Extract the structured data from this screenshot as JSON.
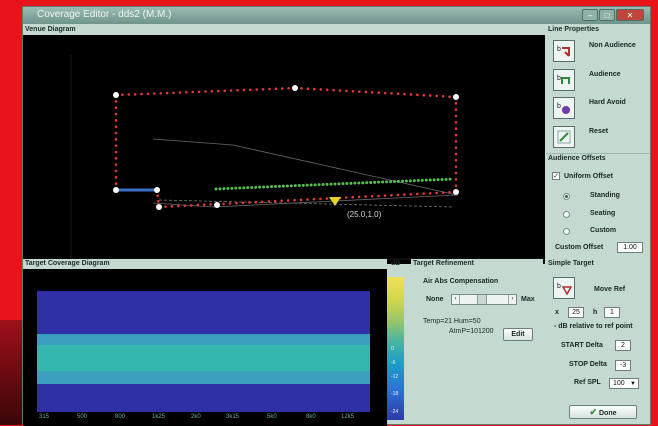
{
  "window": {
    "title": "Coverage Editor - dds2 (M.M.)",
    "buttons": [
      "–",
      "□",
      "✕"
    ]
  },
  "venue": {
    "title": "Venue Diagram",
    "coordinate_label": "(25.0,1.0)",
    "colors": {
      "boundary": "#e03a3a",
      "audience": "#52c24a",
      "hard_avoid": "#3f6fc2",
      "marker": "#e6d02a"
    }
  },
  "line_properties": {
    "title": "Line Properties",
    "items": [
      {
        "label": "Non Audience",
        "icon": "non-audience-icon"
      },
      {
        "label": "Audience",
        "icon": "audience-icon"
      },
      {
        "label": "Hard Avoid",
        "icon": "hard-avoid-icon"
      },
      {
        "label": "Reset",
        "icon": "reset-icon"
      }
    ]
  },
  "audience_offsets": {
    "title": "Audience Offsets",
    "uniform_label": "Uniform Offset",
    "uniform_checked": true,
    "options": [
      "Standing",
      "Seating",
      "Custom"
    ],
    "selected": "Standing",
    "custom_offset_label": "Custom Offset",
    "custom_offset_value": "1.00"
  },
  "target_coverage": {
    "title": "Target Coverage Diagram",
    "x_ticks": [
      "315",
      "500",
      "800",
      "1k25",
      "2k0",
      "3k15",
      "5k0",
      "8k0",
      "12k5"
    ],
    "colors": {
      "outer": "#3030a6",
      "inner": "#3a9fbc",
      "center": "#35b6ae"
    }
  },
  "colorbar": {
    "unit": "dB",
    "labels": [
      "0",
      "-6",
      "-12",
      "-18",
      "-24"
    ]
  },
  "target_refinement": {
    "title": "Target Refinement",
    "air_abs_label": "Air Abs Compensation",
    "min_label": "None",
    "max_label": "Max",
    "slider_level": 0.45,
    "temp_line": "Temp=21   Hum=50",
    "atm_line": "AtmP=101200",
    "edit_label": "Edit"
  },
  "simple_target": {
    "title": "Simple Target",
    "move_ref_label": "Move Ref",
    "x_label": "x",
    "x_value": "25",
    "h_label": "h",
    "h_value": "1",
    "db_relative_label": "- dB relative to ref point",
    "start_label": "START Delta",
    "start_value": "2",
    "stop_label": "STOP Delta",
    "stop_value": "-3",
    "ref_spl_label": "Ref SPL",
    "ref_spl_value": "100",
    "done_label": "Done"
  }
}
